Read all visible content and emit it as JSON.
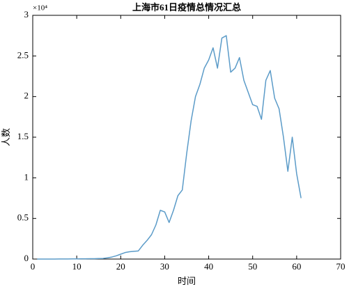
{
  "chart_data": {
    "type": "line",
    "title": "上海市61日疫情总情况汇总",
    "x_label": "时间",
    "y_label": "人数",
    "y_multiplier": "×10⁴",
    "x": [
      1,
      2,
      3,
      4,
      5,
      6,
      7,
      8,
      9,
      10,
      11,
      12,
      13,
      14,
      15,
      16,
      17,
      18,
      19,
      20,
      21,
      22,
      23,
      24,
      25,
      26,
      27,
      28,
      29,
      30,
      31,
      32,
      33,
      34,
      35,
      36,
      37,
      38,
      39,
      40,
      41,
      42,
      43,
      44,
      45,
      46,
      47,
      48,
      49,
      50,
      51,
      52,
      53,
      54,
      55,
      56,
      57,
      58,
      59,
      60,
      61
    ],
    "series": [
      {
        "color": "#5b9bc8",
        "values": [
          0.0005,
          0.0003,
          0.0004,
          0.0005,
          0.0005,
          0.0008,
          0.001,
          0.0015,
          0.002,
          0.002,
          0.003,
          0.003,
          0.004,
          0.004,
          0.006,
          0.008,
          0.015,
          0.025,
          0.04,
          0.06,
          0.08,
          0.09,
          0.095,
          0.1,
          0.17,
          0.23,
          0.3,
          0.42,
          0.6,
          0.58,
          0.45,
          0.6,
          0.78,
          0.85,
          1.3,
          1.7,
          2.0,
          2.15,
          2.35,
          2.45,
          2.6,
          2.35,
          2.72,
          2.75,
          2.3,
          2.35,
          2.48,
          2.2,
          2.05,
          1.9,
          1.88,
          1.72,
          2.2,
          2.32,
          1.98,
          1.85,
          1.5,
          1.08,
          1.5,
          1.05,
          0.75
        ]
      }
    ],
    "xlim": [
      0,
      70
    ],
    "xticks": [
      0,
      10,
      20,
      30,
      40,
      50,
      60,
      70
    ],
    "ylim": [
      0,
      3
    ],
    "yticks": [
      0,
      0.5,
      1,
      1.5,
      2,
      2.5,
      3
    ]
  }
}
